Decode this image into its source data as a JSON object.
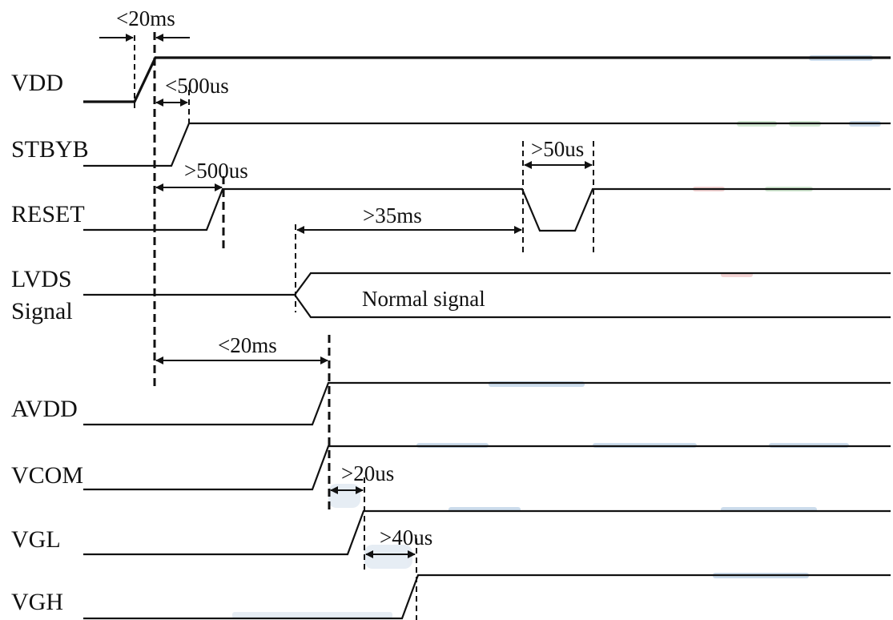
{
  "signals": {
    "vdd": "VDD",
    "stbyb": "STBYB",
    "reset": "RESET",
    "lvds_line1": "LVDS",
    "lvds_line2": "Signal",
    "avdd": "AVDD",
    "vcom": "VCOM",
    "vgl": "VGL",
    "vgh": "VGH"
  },
  "timings": {
    "vdd_rise": "<20ms",
    "stbyb_delay": "<500us",
    "reset_delay": ">500us",
    "reset_pulse": ">50us",
    "lvds_to_reset": ">35ms",
    "avdd_delay": "<20ms",
    "vgl_delay": ">20us",
    "vgh_delay": ">40us"
  },
  "lvds_state": "Normal signal",
  "colors": {
    "line": "#111111",
    "smudge_blue": "#8fb3d6",
    "smudge_green": "#9fcf9f",
    "smudge_red": "#e6a0a0"
  }
}
